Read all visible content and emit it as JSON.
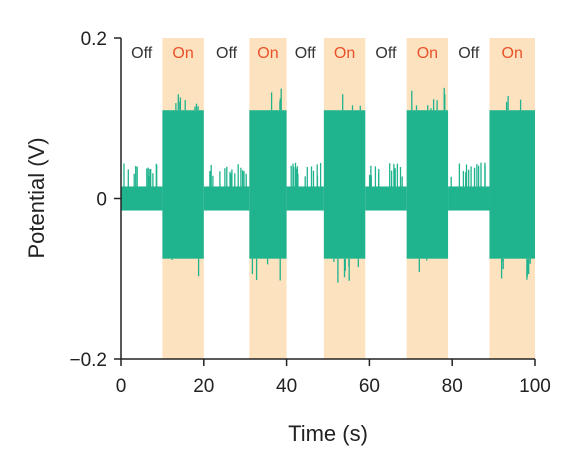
{
  "chart_data": {
    "type": "line",
    "title": "",
    "xlabel": "Time (s)",
    "ylabel": "Potential (V)",
    "xlim": [
      0,
      100
    ],
    "ylim": [
      -0.2,
      0.2
    ],
    "x_ticks": [
      0,
      20,
      40,
      60,
      80,
      100
    ],
    "y_ticks": [
      -0.2,
      0,
      0.2
    ],
    "x_tick_labels": [
      "0",
      "20",
      "40",
      "60",
      "80",
      "100"
    ],
    "y_tick_labels": [
      "−0.2",
      "0",
      "0.2"
    ],
    "grid": false,
    "legend": "none",
    "colors": {
      "signal": "#1fb38e",
      "on_region": "#fde2bf",
      "off_text": "#333333",
      "on_text": "#e8522b",
      "axis": "#222222"
    },
    "regions": [
      {
        "label": "Off",
        "start": 0,
        "end": 10
      },
      {
        "label": "On",
        "start": 10,
        "end": 20
      },
      {
        "label": "Off",
        "start": 20,
        "end": 31
      },
      {
        "label": "On",
        "start": 31,
        "end": 40
      },
      {
        "label": "Off",
        "start": 40,
        "end": 49
      },
      {
        "label": "On",
        "start": 49,
        "end": 59
      },
      {
        "label": "Off",
        "start": 59,
        "end": 69
      },
      {
        "label": "On",
        "start": 69,
        "end": 79
      },
      {
        "label": "Off",
        "start": 79,
        "end": 89
      },
      {
        "label": "On",
        "start": 89,
        "end": 100
      }
    ],
    "series": [
      {
        "off_level": {
          "low": -0.015,
          "high": 0.015,
          "spike_max": 0.045
        },
        "on_level": {
          "low": -0.075,
          "high": 0.11,
          "spike_max": 0.14,
          "spike_min": -0.105
        }
      }
    ]
  }
}
